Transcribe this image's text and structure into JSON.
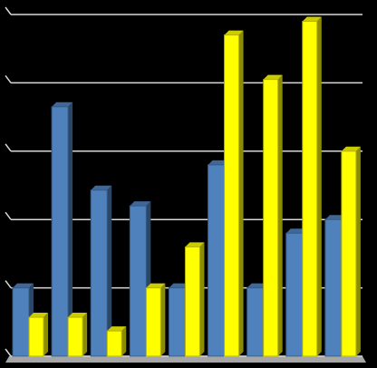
{
  "chart_data": {
    "type": "bar3d",
    "series": [
      {
        "color": "#4f81bd",
        "values": [
          1.0,
          3.65,
          2.43,
          2.2,
          1.0,
          2.8,
          1.0,
          1.8,
          2.0
        ]
      },
      {
        "color": "#ffff00",
        "values": [
          0.57,
          0.57,
          0.37,
          1.0,
          1.6,
          4.7,
          4.05,
          4.9,
          3.0
        ]
      }
    ],
    "ylim": [
      0,
      5
    ],
    "yticks": [
      0,
      1,
      2,
      3,
      4,
      5
    ],
    "grid": true
  }
}
